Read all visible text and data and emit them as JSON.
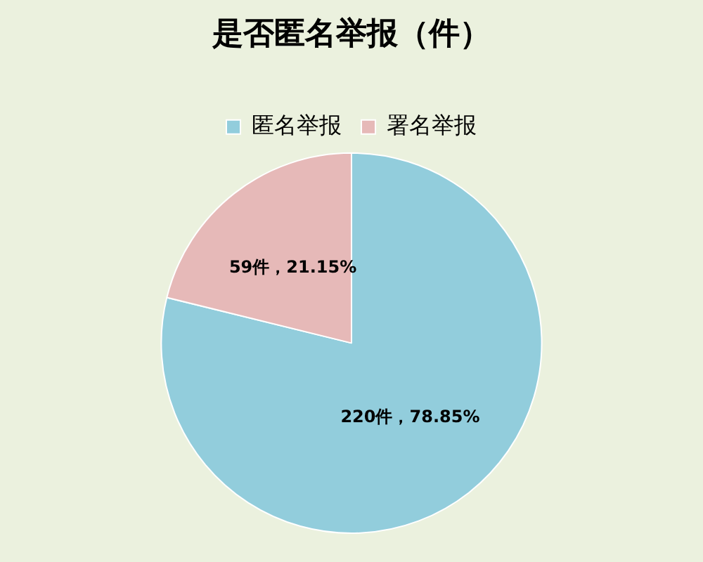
{
  "chart_data": {
    "type": "pie",
    "title": "是否匿名举报（件）",
    "categories": [
      "匿名举报",
      "署名举报"
    ],
    "values": [
      220,
      59
    ],
    "colors": [
      "#92cddc",
      "#e6b9b8"
    ],
    "value_labels": [
      "220件，78.85%",
      "59件，21.15%"
    ],
    "legend": "top"
  }
}
